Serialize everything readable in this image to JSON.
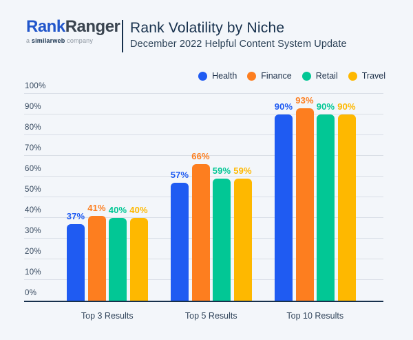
{
  "header": {
    "logo": {
      "part1": "Rank",
      "part2": "Ranger",
      "tagline_prefix": "a ",
      "tagline_brand": "similarweb",
      "tagline_suffix": " company"
    },
    "title": "Rank Volatility by Niche",
    "subtitle": "December 2022 Helpful Content System Update"
  },
  "colors": {
    "background": "#f3f6fa",
    "navy": "#16304c",
    "subtitle_text": "#2c4257",
    "axis_text": "#33465c",
    "legend_text": "#1d3049",
    "gridline": "#d9dee6",
    "logo_blue": "#2156cb",
    "logo_dark": "#3a444f",
    "tagline_gray": "#8b949e",
    "health": "#1f5bf2",
    "finance": "#fd7e1f",
    "retail": "#02c795",
    "travel": "#feb800"
  },
  "chart_data": {
    "type": "bar",
    "title": "Rank Volatility by Niche",
    "subtitle": "December 2022 Helpful Content System Update",
    "categories": [
      "Top 3 Results",
      "Top 5 Results",
      "Top 10 Results"
    ],
    "series": [
      {
        "name": "Health",
        "color_key": "health",
        "values": [
          37,
          57,
          90
        ]
      },
      {
        "name": "Finance",
        "color_key": "finance",
        "values": [
          41,
          66,
          93
        ]
      },
      {
        "name": "Retail",
        "color_key": "retail",
        "values": [
          40,
          59,
          90
        ]
      },
      {
        "name": "Travel",
        "color_key": "travel",
        "values": [
          40,
          59,
          90
        ]
      }
    ],
    "value_label_suffix": "%",
    "yticks": [
      0,
      10,
      20,
      30,
      40,
      50,
      60,
      70,
      80,
      90,
      100
    ],
    "ytick_suffix": "%",
    "ylim": [
      0,
      100
    ],
    "grid": true,
    "legend_position": "top-right"
  }
}
